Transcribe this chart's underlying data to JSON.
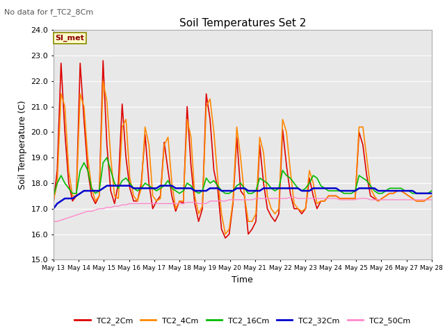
{
  "title": "Soil Temperatures Set 2",
  "subtitle": "No data for f_TC2_8Cm",
  "xlabel": "Time",
  "ylabel": "Soil Temperature (C)",
  "ylim": [
    15.0,
    24.0
  ],
  "yticks": [
    15.0,
    16.0,
    17.0,
    18.0,
    19.0,
    20.0,
    21.0,
    22.0,
    23.0,
    24.0
  ],
  "xtick_labels": [
    "May 13",
    "May 14",
    "May 15",
    "May 16",
    "May 17",
    "May 18",
    "May 19",
    "May 20",
    "May 21",
    "May 22",
    "May 23",
    "May 24",
    "May 25",
    "May 26",
    "May 27",
    "May 28"
  ],
  "bg_color": "#e8e8e8",
  "annotation_text": "SI_met",
  "annotation_box_color": "#ffffcc",
  "annotation_box_edge_color": "#888800",
  "series": {
    "TC2_2Cm": {
      "color": "#dd0000",
      "lw": 1.2
    },
    "TC2_4Cm": {
      "color": "#ff8800",
      "lw": 1.2
    },
    "TC2_16Cm": {
      "color": "#00bb00",
      "lw": 1.2
    },
    "TC2_32Cm": {
      "color": "#0000cc",
      "lw": 1.8
    },
    "TC2_50Cm": {
      "color": "#ff88cc",
      "lw": 1.0
    }
  },
  "TC2_2Cm": [
    17.2,
    18.5,
    22.7,
    20.0,
    18.0,
    17.3,
    17.5,
    22.7,
    20.5,
    18.5,
    17.5,
    17.2,
    17.5,
    22.8,
    19.5,
    17.7,
    17.2,
    18.0,
    21.1,
    19.0,
    17.8,
    17.3,
    17.3,
    18.0,
    19.9,
    18.0,
    17.0,
    17.3,
    17.5,
    19.6,
    18.5,
    17.5,
    16.9,
    17.3,
    17.2,
    21.0,
    18.7,
    17.2,
    16.5,
    17.0,
    21.5,
    20.5,
    18.5,
    17.8,
    16.2,
    15.85,
    16.0,
    17.2,
    19.8,
    17.7,
    17.5,
    16.0,
    16.2,
    16.5,
    19.5,
    18.0,
    17.0,
    16.7,
    16.5,
    16.8,
    20.1,
    18.7,
    17.6,
    17.0,
    17.0,
    16.8,
    17.0,
    18.2,
    17.5,
    17.0,
    17.3,
    17.3,
    17.5,
    17.5,
    17.5,
    17.4,
    17.4,
    17.4,
    17.4,
    17.4,
    20.0,
    19.5,
    18.3,
    17.5,
    17.4,
    17.3,
    17.4,
    17.5,
    17.6,
    17.6,
    17.7,
    17.7,
    17.6,
    17.5,
    17.4,
    17.3,
    17.3,
    17.3,
    17.4,
    17.5
  ],
  "TC2_4Cm": [
    17.3,
    18.0,
    21.5,
    21.0,
    18.5,
    17.5,
    17.5,
    21.5,
    21.0,
    19.0,
    17.8,
    17.3,
    17.5,
    22.0,
    21.2,
    19.0,
    17.5,
    17.4,
    20.2,
    20.5,
    18.2,
    17.5,
    17.3,
    17.8,
    20.2,
    19.5,
    17.5,
    17.3,
    17.4,
    19.5,
    19.8,
    18.0,
    17.0,
    17.3,
    17.3,
    20.5,
    19.8,
    17.5,
    16.8,
    17.1,
    21.0,
    21.3,
    20.0,
    18.2,
    16.8,
    16.0,
    16.2,
    17.3,
    20.2,
    19.0,
    17.5,
    16.5,
    16.5,
    16.8,
    19.8,
    19.2,
    17.5,
    17.0,
    16.8,
    17.0,
    20.5,
    20.0,
    18.5,
    17.2,
    17.0,
    16.9,
    17.0,
    18.5,
    18.0,
    17.2,
    17.3,
    17.3,
    17.5,
    17.5,
    17.5,
    17.4,
    17.4,
    17.4,
    17.4,
    17.4,
    20.2,
    20.2,
    19.0,
    17.8,
    17.5,
    17.3,
    17.4,
    17.5,
    17.6,
    17.6,
    17.7,
    17.7,
    17.6,
    17.5,
    17.4,
    17.3,
    17.3,
    17.3,
    17.4,
    17.5
  ],
  "TC2_16Cm": [
    17.5,
    18.0,
    18.3,
    18.0,
    17.8,
    17.6,
    17.6,
    18.5,
    18.8,
    18.5,
    17.8,
    17.6,
    17.7,
    18.8,
    19.0,
    18.5,
    18.0,
    17.8,
    18.1,
    18.2,
    18.0,
    17.8,
    17.7,
    17.8,
    18.0,
    17.9,
    17.8,
    17.7,
    17.8,
    17.9,
    18.1,
    17.8,
    17.7,
    17.6,
    17.7,
    18.0,
    17.9,
    17.7,
    17.6,
    17.7,
    18.2,
    18.0,
    18.1,
    17.9,
    17.7,
    17.6,
    17.6,
    17.7,
    17.9,
    18.0,
    17.8,
    17.6,
    17.6,
    17.7,
    18.2,
    18.1,
    18.0,
    17.8,
    17.7,
    17.8,
    18.5,
    18.3,
    18.2,
    18.0,
    17.8,
    17.7,
    17.8,
    18.0,
    18.3,
    18.2,
    17.9,
    17.8,
    17.7,
    17.7,
    17.7,
    17.7,
    17.6,
    17.6,
    17.6,
    17.7,
    18.3,
    18.2,
    18.1,
    17.9,
    17.7,
    17.6,
    17.6,
    17.7,
    17.8,
    17.8,
    17.8,
    17.8,
    17.7,
    17.7,
    17.6,
    17.6,
    17.6,
    17.6,
    17.6,
    17.7
  ],
  "TC2_32Cm": [
    17.0,
    17.2,
    17.3,
    17.4,
    17.4,
    17.4,
    17.5,
    17.6,
    17.7,
    17.7,
    17.7,
    17.7,
    17.7,
    17.8,
    17.9,
    17.9,
    17.9,
    17.9,
    17.9,
    17.9,
    17.9,
    17.8,
    17.8,
    17.8,
    17.8,
    17.8,
    17.8,
    17.8,
    17.9,
    17.9,
    17.9,
    17.9,
    17.8,
    17.8,
    17.8,
    17.8,
    17.8,
    17.7,
    17.7,
    17.7,
    17.7,
    17.8,
    17.8,
    17.8,
    17.7,
    17.7,
    17.7,
    17.7,
    17.8,
    17.8,
    17.8,
    17.7,
    17.7,
    17.7,
    17.7,
    17.8,
    17.8,
    17.8,
    17.8,
    17.8,
    17.8,
    17.8,
    17.8,
    17.8,
    17.8,
    17.7,
    17.7,
    17.7,
    17.8,
    17.8,
    17.8,
    17.8,
    17.8,
    17.8,
    17.8,
    17.7,
    17.7,
    17.7,
    17.7,
    17.7,
    17.8,
    17.8,
    17.8,
    17.8,
    17.8,
    17.7,
    17.7,
    17.7,
    17.7,
    17.7,
    17.7,
    17.7,
    17.7,
    17.7,
    17.7,
    17.6,
    17.6,
    17.6,
    17.6,
    17.6
  ],
  "TC2_50Cm": [
    16.5,
    16.5,
    16.55,
    16.6,
    16.65,
    16.7,
    16.75,
    16.8,
    16.85,
    16.9,
    16.9,
    16.95,
    17.0,
    17.0,
    17.05,
    17.05,
    17.1,
    17.1,
    17.15,
    17.15,
    17.2,
    17.2,
    17.2,
    17.2,
    17.2,
    17.2,
    17.2,
    17.2,
    17.2,
    17.2,
    17.2,
    17.2,
    17.2,
    17.2,
    17.2,
    17.25,
    17.25,
    17.25,
    17.2,
    17.2,
    17.2,
    17.3,
    17.3,
    17.3,
    17.3,
    17.3,
    17.35,
    17.35,
    17.35,
    17.35,
    17.35,
    17.35,
    17.35,
    17.4,
    17.4,
    17.4,
    17.4,
    17.4,
    17.4,
    17.4,
    17.4,
    17.4,
    17.45,
    17.45,
    17.4,
    17.4,
    17.4,
    17.4,
    17.4,
    17.4,
    17.4,
    17.4,
    17.4,
    17.4,
    17.4,
    17.35,
    17.35,
    17.35,
    17.35,
    17.35,
    17.4,
    17.4,
    17.4,
    17.35,
    17.35,
    17.35,
    17.35,
    17.35,
    17.35,
    17.35,
    17.35,
    17.35,
    17.35,
    17.35,
    17.35,
    17.35,
    17.35,
    17.35,
    17.35,
    17.35
  ]
}
